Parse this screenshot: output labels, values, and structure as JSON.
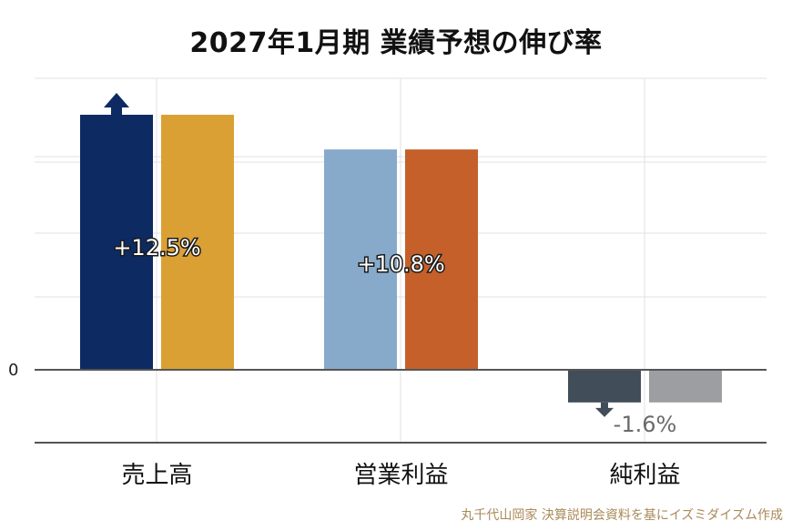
{
  "chart_data": {
    "type": "bar",
    "title": "2027年1月期 業績予想の伸び率",
    "categories": [
      "売上高",
      "営業利益",
      "純利益"
    ],
    "series": [
      {
        "values": [
          12.5,
          10.8,
          -1.6
        ]
      },
      {
        "values": [
          12.5,
          10.8,
          -1.6
        ]
      }
    ],
    "bar_colors": [
      [
        "#0d2a63",
        "#dba034"
      ],
      [
        "#87aacb",
        "#c5602a"
      ],
      [
        "#424d5a",
        "#9c9ea2"
      ]
    ],
    "data_labels": [
      "+12.5%",
      "+10.8%",
      "-1.6%"
    ],
    "arrows": [
      "up",
      "none",
      "down"
    ],
    "y_zero_label": "0",
    "ylim": [
      -3.5,
      14.0
    ],
    "grid": true,
    "source": "丸千代山岡家 決算説明会資料を基にイズミダイズム作成"
  },
  "colors": {
    "axis": "#555555",
    "grid": "#e2e2e2",
    "label_light": "#ffffff",
    "label_dark": "#6a6a6a"
  }
}
